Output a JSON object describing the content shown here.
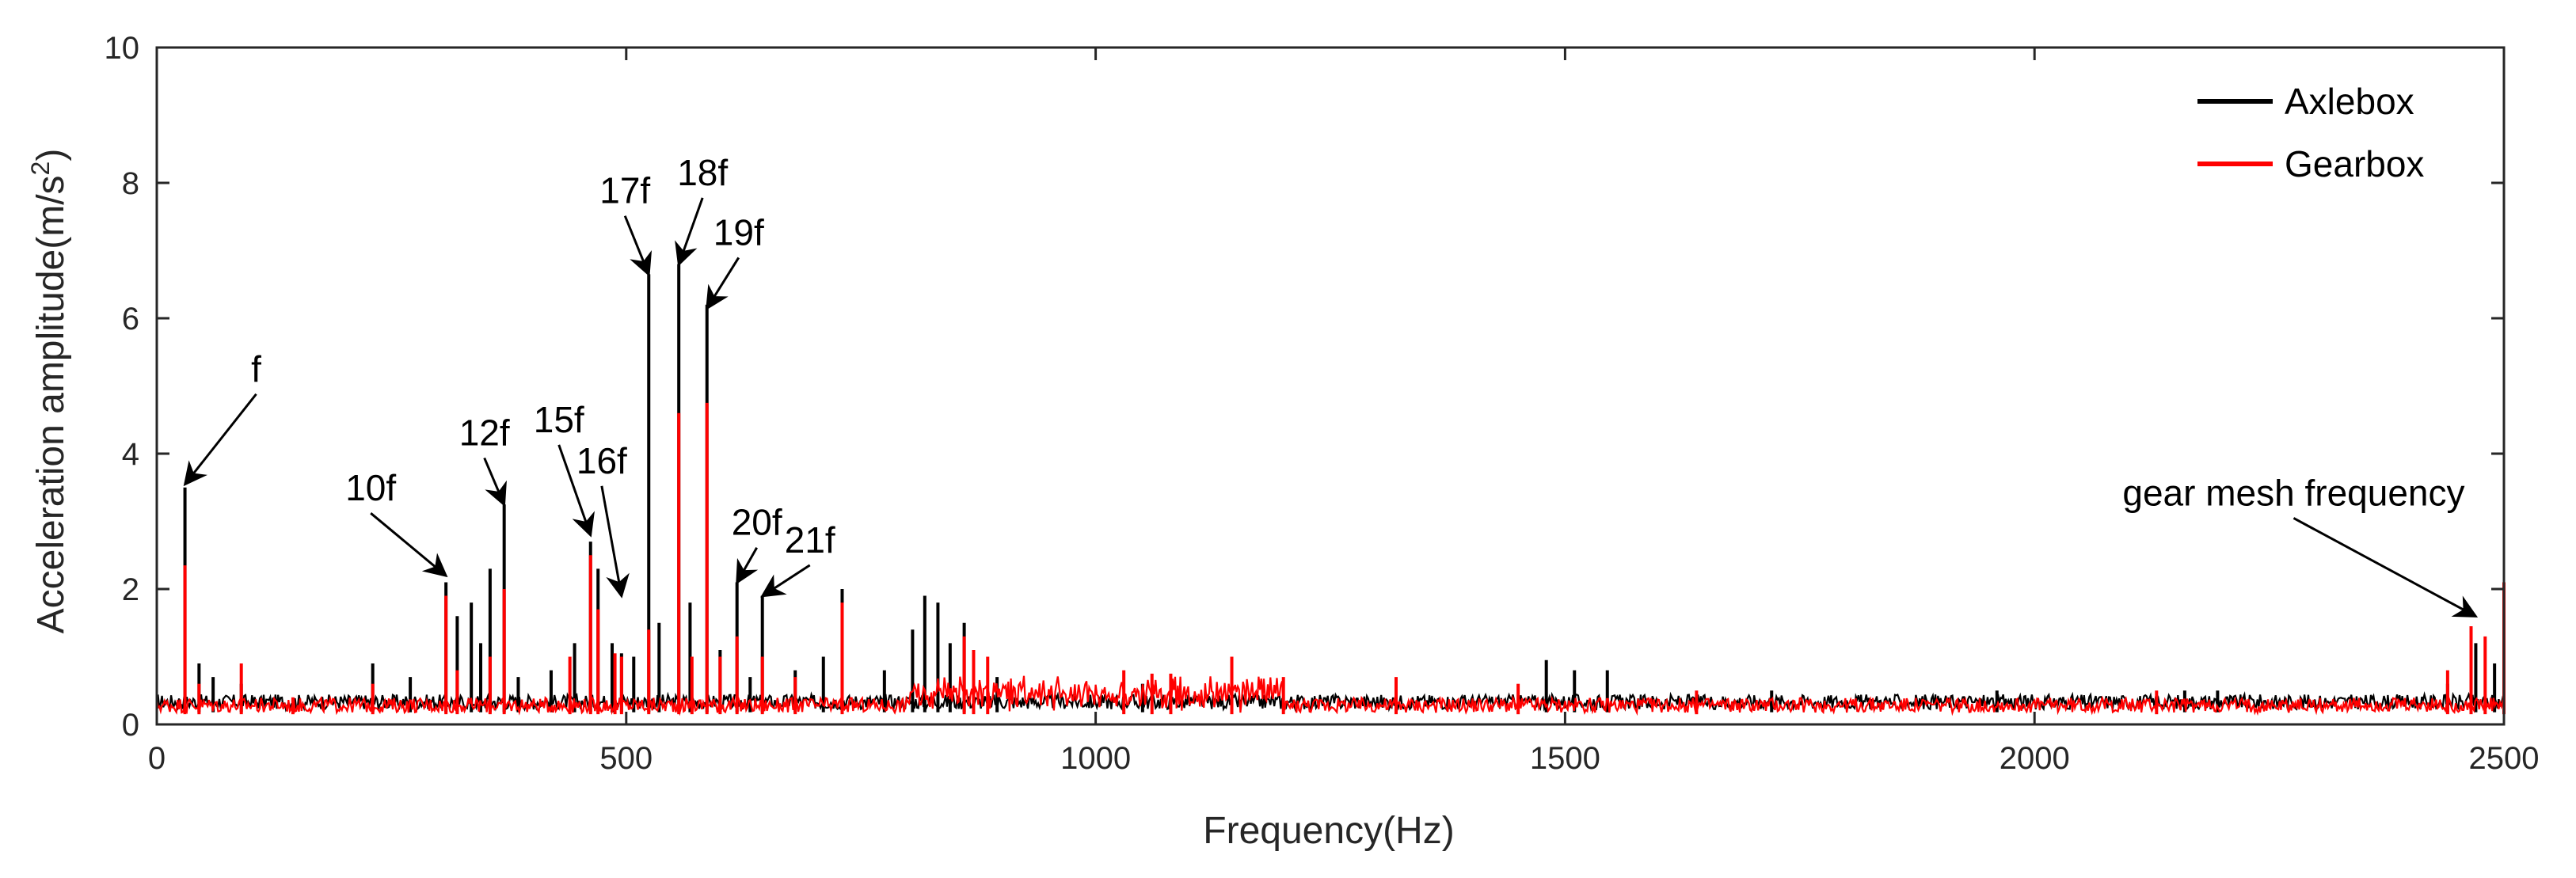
{
  "chart_data": {
    "type": "line",
    "xlabel": "Frequency(Hz)",
    "ylabel": "Acceleration amplitude(m/s",
    "ylabel_superscript": "2",
    "ylabel_suffix": ")",
    "xlim": [
      0,
      2500
    ],
    "ylim": [
      0,
      10
    ],
    "xticks": [
      0,
      500,
      1000,
      1500,
      2000,
      2500
    ],
    "yticks": [
      0,
      2,
      4,
      6,
      8,
      10
    ],
    "legend_position": "top-right",
    "grid": false,
    "series": [
      {
        "name": "Axlebox",
        "color": "#000000",
        "baseline": 0.3,
        "peaks": [
          [
            30,
            3.5
          ],
          [
            45,
            0.9
          ],
          [
            60,
            0.7
          ],
          [
            90,
            0.6
          ],
          [
            230,
            0.9
          ],
          [
            270,
            0.7
          ],
          [
            308,
            2.1
          ],
          [
            320,
            1.6
          ],
          [
            335,
            1.8
          ],
          [
            345,
            1.2
          ],
          [
            355,
            2.3
          ],
          [
            370,
            3.25
          ],
          [
            385,
            0.7
          ],
          [
            420,
            0.8
          ],
          [
            445,
            1.2
          ],
          [
            462,
            2.7
          ],
          [
            470,
            2.3
          ],
          [
            485,
            1.2
          ],
          [
            495,
            1.05
          ],
          [
            508,
            1.0
          ],
          [
            524,
            6.65
          ],
          [
            535,
            1.5
          ],
          [
            556,
            6.8
          ],
          [
            568,
            1.8
          ],
          [
            586,
            6.2
          ],
          [
            600,
            1.1
          ],
          [
            618,
            2.1
          ],
          [
            632,
            0.7
          ],
          [
            645,
            1.9
          ],
          [
            680,
            0.8
          ],
          [
            710,
            1.0
          ],
          [
            730,
            2.0
          ],
          [
            775,
            0.8
          ],
          [
            805,
            1.4
          ],
          [
            818,
            1.9
          ],
          [
            832,
            1.8
          ],
          [
            845,
            1.2
          ],
          [
            860,
            1.5
          ],
          [
            895,
            0.7
          ],
          [
            1050,
            0.6
          ],
          [
            1480,
            0.95
          ],
          [
            1510,
            0.8
          ],
          [
            1545,
            0.8
          ],
          [
            1720,
            0.5
          ],
          [
            1960,
            0.5
          ],
          [
            2160,
            0.5
          ],
          [
            2195,
            0.5
          ],
          [
            2440,
            0.6
          ],
          [
            2470,
            1.2
          ],
          [
            2490,
            0.9
          ],
          [
            2500,
            2.0
          ]
        ]
      },
      {
        "name": "Gearbox",
        "color": "#ff0000",
        "baseline": 0.25,
        "peaks": [
          [
            30,
            2.35
          ],
          [
            45,
            0.6
          ],
          [
            90,
            0.9
          ],
          [
            145,
            0.4
          ],
          [
            230,
            0.6
          ],
          [
            308,
            1.9
          ],
          [
            320,
            0.8
          ],
          [
            355,
            1.0
          ],
          [
            370,
            2.0
          ],
          [
            440,
            1.0
          ],
          [
            462,
            2.5
          ],
          [
            470,
            1.7
          ],
          [
            488,
            1.05
          ],
          [
            495,
            1.0
          ],
          [
            524,
            1.4
          ],
          [
            556,
            4.6
          ],
          [
            570,
            1.0
          ],
          [
            586,
            4.75
          ],
          [
            600,
            1.0
          ],
          [
            618,
            1.3
          ],
          [
            645,
            1.0
          ],
          [
            680,
            0.7
          ],
          [
            730,
            1.8
          ],
          [
            860,
            1.3
          ],
          [
            870,
            1.1
          ],
          [
            885,
            1.0
          ],
          [
            1030,
            0.8
          ],
          [
            1060,
            0.75
          ],
          [
            1080,
            0.75
          ],
          [
            1145,
            1.0
          ],
          [
            1200,
            0.7
          ],
          [
            1320,
            0.7
          ],
          [
            1450,
            0.6
          ],
          [
            1640,
            0.5
          ],
          [
            2130,
            0.5
          ],
          [
            2440,
            0.8
          ],
          [
            2465,
            1.45
          ],
          [
            2480,
            1.3
          ],
          [
            2500,
            2.1
          ]
        ]
      }
    ],
    "annotations": [
      {
        "text": "f",
        "x": 30,
        "y": 3.5
      },
      {
        "text": "10f",
        "x": 308,
        "y": 2.15
      },
      {
        "text": "12f",
        "x": 370,
        "y": 3.2
      },
      {
        "text": "15f",
        "x": 462,
        "y": 2.75
      },
      {
        "text": "16f",
        "x": 495,
        "y": 1.85
      },
      {
        "text": "17f",
        "x": 524,
        "y": 6.6
      },
      {
        "text": "18f",
        "x": 556,
        "y": 6.75
      },
      {
        "text": "19f",
        "x": 586,
        "y": 6.1
      },
      {
        "text": "20f",
        "x": 618,
        "y": 2.05
      },
      {
        "text": "21f",
        "x": 645,
        "y": 1.85
      },
      {
        "text": "gear mesh frequency",
        "x": 2470,
        "y": 1.55
      }
    ]
  }
}
